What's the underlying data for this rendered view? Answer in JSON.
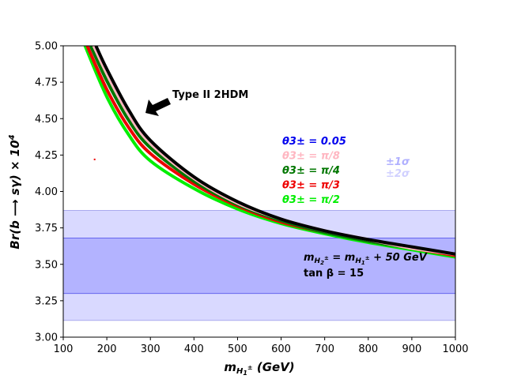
{
  "chart_data": {
    "type": "line",
    "xlim": [
      100,
      1000
    ],
    "ylim": [
      3.0,
      5.0
    ],
    "xticks": [
      100,
      200,
      300,
      400,
      500,
      600,
      700,
      800,
      900,
      1000
    ],
    "yticks": [
      3.0,
      3.25,
      3.5,
      3.75,
      4.0,
      4.25,
      4.5,
      4.75,
      5.0
    ],
    "xlabel": "m_{H1±} (GeV)",
    "ylabel": "Br(b → sγ) × 10^4",
    "bands": [
      {
        "name": "±1σ",
        "low": 3.3,
        "high": 3.68,
        "color": "#b3b3ff",
        "edge": "#6666ee"
      },
      {
        "name": "±2σ",
        "low": 3.115,
        "high": 3.87,
        "color": "#d9d9ff",
        "edge": "#aaaaee"
      }
    ],
    "series": [
      {
        "name": "θ3± = π/2",
        "color": "#00ee00",
        "x": [
          150,
          200,
          250,
          300,
          400,
          500,
          600,
          700,
          800,
          900,
          1000
        ],
        "y": [
          5.0,
          4.65,
          4.39,
          4.21,
          4.02,
          3.88,
          3.78,
          3.71,
          3.65,
          3.6,
          3.55
        ]
      },
      {
        "name": "θ3± = π/3",
        "color": "#ee0000",
        "x": [
          155,
          200,
          250,
          300,
          400,
          500,
          600,
          700,
          800,
          900,
          1000
        ],
        "y": [
          5.0,
          4.7,
          4.44,
          4.26,
          4.05,
          3.9,
          3.79,
          3.72,
          3.66,
          3.61,
          3.56
        ]
      },
      {
        "name": "θ3± = π/4",
        "color": "#007700",
        "x": [
          163,
          200,
          250,
          300,
          400,
          500,
          600,
          700,
          800,
          900,
          1000
        ],
        "y": [
          5.0,
          4.76,
          4.49,
          4.3,
          4.07,
          3.91,
          3.8,
          3.72,
          3.66,
          3.61,
          3.57
        ]
      },
      {
        "name": "θ3± = π/8",
        "color": "#ffb6c1",
        "x": [
          170,
          200,
          250,
          300,
          400,
          500,
          600,
          700,
          800,
          900,
          1000
        ],
        "y": [
          5.0,
          4.81,
          4.53,
          4.33,
          4.09,
          3.92,
          3.81,
          3.73,
          3.67,
          3.61,
          3.57
        ]
      },
      {
        "name": "θ3± = 0.05",
        "color": "#000000",
        "x": [
          175,
          200,
          250,
          300,
          400,
          500,
          600,
          700,
          800,
          900,
          1000
        ],
        "y": [
          5.0,
          4.84,
          4.56,
          4.35,
          4.1,
          3.93,
          3.81,
          3.73,
          3.67,
          3.62,
          3.57
        ]
      }
    ],
    "point": {
      "x": 172,
      "y": 4.22,
      "color": "#ee0000"
    },
    "legend": [
      {
        "text": "θ3± = 0.05",
        "color": "#0000ee"
      },
      {
        "text": "θ3± = π/8",
        "color": "#ffb6c1"
      },
      {
        "text": "θ3± = π/4",
        "color": "#007700"
      },
      {
        "text": "θ3± = π/3",
        "color": "#ee0000"
      },
      {
        "text": "θ3± = π/2",
        "color": "#00ee00"
      }
    ],
    "band_legend": [
      {
        "text": "±1σ",
        "color": "#b0b0ff"
      },
      {
        "text": "±2σ",
        "color": "#d0d0ff"
      }
    ],
    "annotations": {
      "type2": "Type II 2HDM",
      "mass_relation": "m_{H2±} = m_{H1±} + 50 GeV",
      "tanbeta": "tan β = 15"
    }
  }
}
